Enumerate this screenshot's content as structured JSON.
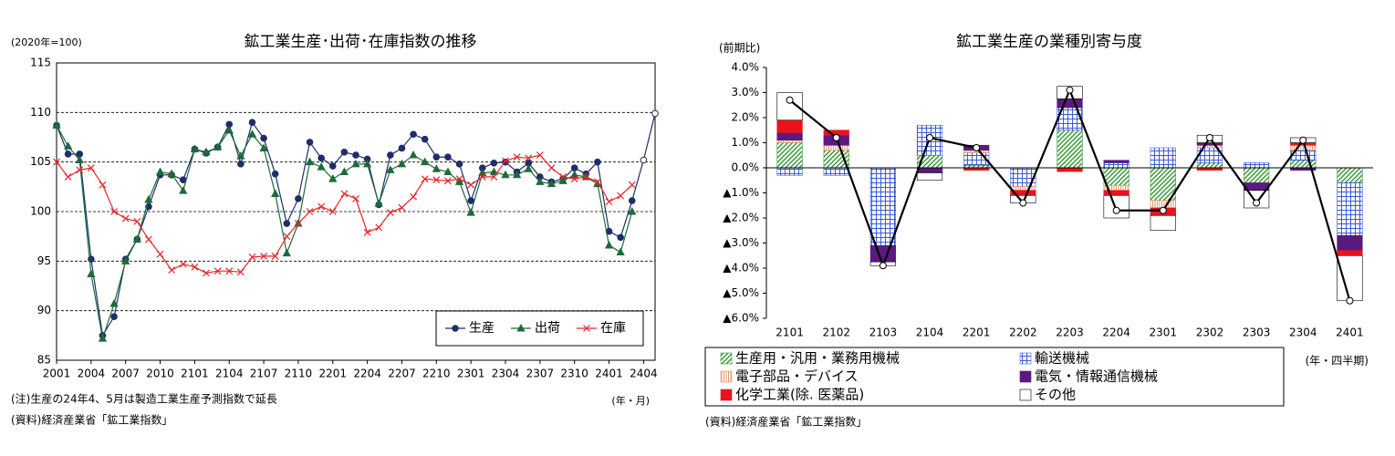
{
  "chart_data": [
    {
      "type": "line",
      "title": "鉱工業生産･出荷･在庫指数の推移",
      "y_unit": "(2020年=100)",
      "x_unit": "(年・月)",
      "note": "(注)生産の24年4、5月は製造工業生産予測指数で延長",
      "source": "(資料)経済産業省「鉱工業指数」",
      "categories": [
        "2001",
        null,
        null,
        "2004",
        null,
        null,
        "2007",
        null,
        null,
        "2010",
        null,
        null,
        "2101",
        null,
        null,
        "2104",
        null,
        null,
        "2107",
        null,
        null,
        "2110",
        null,
        null,
        "2201",
        null,
        null,
        "2204",
        null,
        null,
        "2207",
        null,
        null,
        "2210",
        null,
        null,
        "2301",
        null,
        null,
        "2304",
        null,
        null,
        "2307",
        null,
        null,
        "2310",
        null,
        null,
        "2401",
        null,
        null,
        "2404",
        null
      ],
      "series": [
        {
          "name": "生産",
          "color": "#1f2d6b",
          "marker": "circle",
          "hollow": [
            51,
            52
          ],
          "values": [
            108.7,
            105.8,
            105.8,
            95.2,
            87.5,
            89.4,
            95.2,
            97.2,
            100.5,
            103.7,
            103.7,
            103.2,
            106.3,
            105.9,
            106.5,
            108.8,
            104.8,
            109.0,
            107.4,
            103.8,
            98.8,
            101.3,
            107.0,
            105.4,
            104.6,
            106.0,
            105.7,
            105.3,
            100.7,
            105.7,
            106.4,
            107.8,
            107.3,
            105.5,
            105.5,
            104.8,
            101.1,
            104.4,
            104.9,
            105.0,
            104.0,
            104.9,
            103.5,
            103.0,
            103.3,
            104.4,
            103.8,
            105.0,
            98.0,
            97.4,
            101.1,
            105.2,
            109.9
          ]
        },
        {
          "name": "出荷",
          "color": "#1e6b3a",
          "marker": "triangle",
          "values": [
            108.7,
            106.6,
            105.2,
            93.7,
            87.2,
            90.7,
            95.0,
            97.2,
            101.2,
            104.0,
            103.8,
            102.1,
            106.3,
            106.0,
            106.5,
            108.2,
            105.6,
            107.8,
            106.4,
            101.8,
            95.8,
            98.8,
            105.0,
            104.5,
            103.3,
            104.0,
            104.8,
            104.8,
            100.8,
            104.2,
            104.8,
            105.7,
            105.0,
            104.3,
            104.0,
            103.0,
            99.9,
            103.9,
            104.0,
            103.7,
            103.7,
            104.3,
            103.0,
            102.8,
            103.1,
            103.7,
            103.5,
            102.8,
            96.6,
            95.9,
            100.0,
            null,
            null
          ]
        },
        {
          "name": "在庫",
          "color": "#e8262a",
          "marker": "x",
          "values": [
            105.0,
            103.5,
            104.2,
            104.4,
            102.7,
            100.0,
            99.3,
            99.0,
            97.2,
            95.7,
            94.1,
            94.7,
            94.4,
            93.8,
            94.0,
            94.0,
            93.9,
            95.4,
            95.5,
            95.5,
            97.5,
            98.8,
            100.0,
            100.5,
            100.0,
            101.8,
            101.3,
            97.9,
            98.4,
            99.9,
            100.4,
            101.5,
            103.3,
            103.2,
            103.1,
            103.3,
            102.7,
            103.5,
            103.5,
            105.1,
            105.5,
            105.4,
            105.7,
            104.4,
            103.5,
            103.3,
            103.5,
            103.0,
            101.0,
            101.6,
            102.7,
            null,
            null
          ]
        }
      ],
      "ylim": [
        85,
        115
      ],
      "yticks": [
        85,
        90,
        95,
        100,
        105,
        110,
        115
      ],
      "grid": true,
      "legend": "lower right"
    },
    {
      "type": "stacked_bar",
      "title": "鉱工業生産の業種別寄与度",
      "y_unit": "(前期比)",
      "x_unit": "(年・四半期)",
      "source": "(資料)経済産業省「鉱工業指数」",
      "categories": [
        "2101",
        "2102",
        "2103",
        "2104",
        "2201",
        "2202",
        "2203",
        "2204",
        "2301",
        "2302",
        "2303",
        "2304",
        "2401"
      ],
      "series": [
        {
          "name": "生産用・汎用・業務用機械",
          "color": "#3a9a3a",
          "pattern": "diagonal",
          "values": [
            1.0,
            0.7,
            0,
            0.5,
            0.1,
            0,
            1.5,
            -0.7,
            -1.3,
            0.2,
            -0.6,
            0.3,
            -0.6
          ]
        },
        {
          "name": "輸送機械",
          "color": "#3b5bd6",
          "pattern": "grid",
          "values": [
            -0.3,
            -0.3,
            -3.1,
            1.2,
            0.5,
            -0.75,
            0.9,
            0.2,
            0.8,
            0.6,
            0.2,
            0.4,
            -2.1
          ]
        },
        {
          "name": "電子部品・デバイス",
          "color": "#e0905a",
          "pattern": "vertical",
          "values": [
            0.1,
            0.2,
            0,
            0,
            0.1,
            -0.15,
            0,
            -0.2,
            -0.3,
            0.1,
            0,
            0.2,
            0
          ]
        },
        {
          "name": "電気・情報通信機械",
          "color": "#5b1a80",
          "pattern": "solid",
          "values": [
            0.3,
            0.4,
            -0.65,
            -0.2,
            0.2,
            0,
            0.35,
            0.1,
            0,
            0.1,
            -0.3,
            -0.1,
            -0.6
          ]
        },
        {
          "name": "化学工業(除. 医薬品)",
          "color": "#e8141c",
          "pattern": "solid",
          "values": [
            0.5,
            0.2,
            0,
            0,
            -0.1,
            -0.2,
            -0.15,
            -0.2,
            -0.3,
            -0.1,
            0,
            0.1,
            -0.2
          ]
        },
        {
          "name": "その他",
          "color": "#ffffff",
          "pattern": "outline",
          "values": [
            1.1,
            0,
            -0.15,
            -0.3,
            0,
            -0.3,
            0.5,
            -0.9,
            -0.6,
            0.3,
            -0.7,
            0.2,
            -1.8
          ]
        }
      ],
      "line": {
        "color": "#000000",
        "values": [
          2.7,
          1.2,
          -3.9,
          1.2,
          0.8,
          -1.4,
          3.1,
          -1.7,
          -1.7,
          1.2,
          -1.4,
          1.1,
          -5.3
        ]
      },
      "ylim": [
        -6,
        4
      ],
      "yticks": [
        {
          "value": -6,
          "label": "▲6.0%"
        },
        {
          "value": -5,
          "label": "▲5.0%"
        },
        {
          "value": -4,
          "label": "▲4.0%"
        },
        {
          "value": -3,
          "label": "▲3.0%"
        },
        {
          "value": -2,
          "label": "▲2.0%"
        },
        {
          "value": -1,
          "label": "▲1.0%"
        },
        {
          "value": 0,
          "label": "0.0%"
        },
        {
          "value": 1,
          "label": "1.0%"
        },
        {
          "value": 2,
          "label": "2.0%"
        },
        {
          "value": 3,
          "label": "3.0%"
        },
        {
          "value": 4,
          "label": "4.0%"
        }
      ],
      "grid": false,
      "legend": "bottom"
    }
  ]
}
